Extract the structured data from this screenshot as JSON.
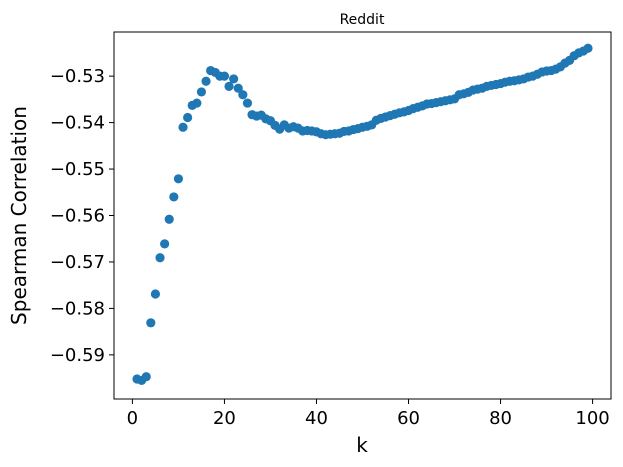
{
  "chart_data": {
    "type": "scatter",
    "title": "Reddit",
    "xlabel": "k",
    "ylabel": "Spearman Correlation",
    "xlim": [
      -4,
      104
    ],
    "ylim": [
      -0.5995,
      -0.5205
    ],
    "xticks": [
      0,
      20,
      40,
      60,
      80,
      100
    ],
    "xtick_labels": [
      "0",
      "20",
      "40",
      "60",
      "80",
      "100"
    ],
    "yticks": [
      -0.53,
      -0.54,
      -0.55,
      -0.56,
      -0.57,
      -0.58,
      -0.59
    ],
    "ytick_labels": [
      "−0.53",
      "−0.54",
      "−0.55",
      "−0.56",
      "−0.57",
      "−0.58",
      "−0.59"
    ],
    "grid": false,
    "marker_color": "#1f77b4",
    "series": [
      {
        "x": [
          1,
          2,
          3,
          4,
          5,
          6,
          7,
          8,
          9,
          10,
          11,
          12,
          13,
          14,
          15,
          16,
          17,
          18,
          19,
          20,
          21,
          22,
          23,
          24,
          25,
          26,
          27,
          28,
          29,
          30,
          31,
          32,
          33,
          34,
          35,
          36,
          37,
          38,
          39,
          40,
          41,
          42,
          43,
          44,
          45,
          46,
          47,
          48,
          49,
          50,
          51,
          52,
          53,
          54,
          55,
          56,
          57,
          58,
          59,
          60,
          61,
          62,
          63,
          64,
          65,
          66,
          67,
          68,
          69,
          70,
          71,
          72,
          73,
          74,
          75,
          76,
          77,
          78,
          79,
          80,
          81,
          82,
          83,
          84,
          85,
          86,
          87,
          88,
          89,
          90,
          91,
          92,
          93,
          94,
          95,
          96,
          97,
          98,
          99
        ],
        "y": [
          -0.5952,
          -0.5955,
          -0.5947,
          -0.5831,
          -0.5769,
          -0.5691,
          -0.5661,
          -0.5608,
          -0.556,
          -0.5521,
          -0.541,
          -0.5389,
          -0.5363,
          -0.5358,
          -0.5334,
          -0.5311,
          -0.5288,
          -0.5292,
          -0.53,
          -0.53,
          -0.5322,
          -0.5306,
          -0.5326,
          -0.534,
          -0.5358,
          -0.5383,
          -0.5386,
          -0.5384,
          -0.5392,
          -0.5396,
          -0.5406,
          -0.5414,
          -0.5405,
          -0.5412,
          -0.5409,
          -0.5412,
          -0.5418,
          -0.5417,
          -0.5418,
          -0.542,
          -0.5424,
          -0.5426,
          -0.5425,
          -0.5424,
          -0.5423,
          -0.5419,
          -0.5418,
          -0.5415,
          -0.5413,
          -0.541,
          -0.5408,
          -0.5405,
          -0.5395,
          -0.5391,
          -0.5388,
          -0.5385,
          -0.5382,
          -0.5379,
          -0.5377,
          -0.5374,
          -0.537,
          -0.5367,
          -0.5364,
          -0.536,
          -0.5359,
          -0.5357,
          -0.5355,
          -0.5353,
          -0.5351,
          -0.5349,
          -0.534,
          -0.5338,
          -0.5335,
          -0.533,
          -0.5328,
          -0.5326,
          -0.5322,
          -0.532,
          -0.5318,
          -0.5316,
          -0.5313,
          -0.5311,
          -0.531,
          -0.5308,
          -0.5306,
          -0.5302,
          -0.53,
          -0.5296,
          -0.5291,
          -0.5289,
          -0.5288,
          -0.5285,
          -0.528,
          -0.5272,
          -0.5266,
          -0.5256,
          -0.525,
          -0.5246,
          -0.524
        ]
      }
    ]
  }
}
